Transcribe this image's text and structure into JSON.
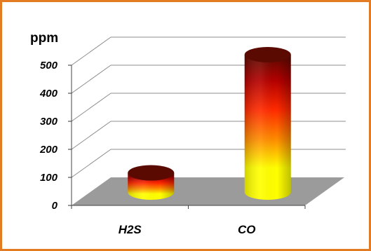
{
  "chart_data": {
    "type": "bar",
    "style": "3d-cylinder",
    "title": "",
    "ylabel": "ppm",
    "xlabel": "",
    "categories": [
      "H2S",
      "CO"
    ],
    "values": [
      70,
      500
    ],
    "ylim": [
      0,
      500
    ],
    "yticks": [
      "0",
      "100",
      "200",
      "300",
      "400",
      "500"
    ],
    "grid": true,
    "legend": "none",
    "colors": {
      "border": "#e37b22",
      "floor": "#9b9b9b",
      "gridline": "#8c8c8c",
      "gradient_top": "#5a0a00",
      "gradient_mid_dark": "#b50000",
      "gradient_mid": "#ff2a00",
      "gradient_orange": "#ff8a00",
      "gradient_bottom": "#ffff00"
    }
  }
}
